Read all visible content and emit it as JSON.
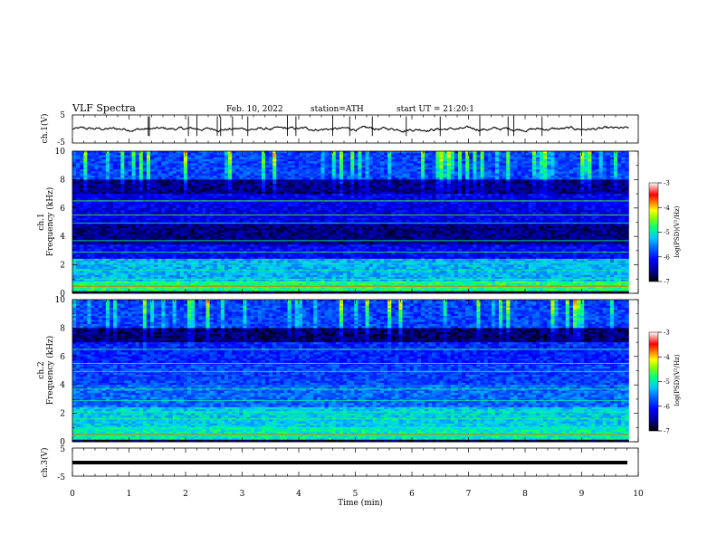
{
  "header": {
    "title": "VLF Spectra",
    "date": "Feb. 10, 2022",
    "station": "station=ATH",
    "start": "start UT =   21:20:1"
  },
  "colors": {
    "trace": "#000000",
    "colormap": [
      "#000000",
      "#00008b",
      "#0000ff",
      "#0064ff",
      "#00c8ff",
      "#00ff80",
      "#80ff00",
      "#ffff00",
      "#ff8000",
      "#ff0000",
      "#ffffff"
    ]
  },
  "chart_data": [
    {
      "type": "line",
      "name": "ch1-trace",
      "ylabel": "ch.1(V)",
      "ylim": [
        -5,
        5
      ],
      "yticks": [
        5,
        -5
      ],
      "x_range_min": [
        0,
        9.83
      ],
      "approx_level": 0,
      "grid": false
    },
    {
      "type": "heatmap",
      "name": "ch1-spectrogram",
      "ylabel": "ch.1\nFrequency (kHz)",
      "ylim": [
        0,
        10
      ],
      "yticks": [
        0,
        2,
        4,
        6,
        8,
        10
      ],
      "x_range_min": [
        0,
        9.83
      ],
      "colorbar": {
        "label": "log(PSD)(V²/Hz)",
        "range": [
          -7,
          -3
        ],
        "ticks": [
          -3,
          -4,
          -5,
          -6,
          -7
        ]
      }
    },
    {
      "type": "heatmap",
      "name": "ch2-spectrogram",
      "ylabel": "ch.2\nFrequency (kHz)",
      "ylim": [
        0,
        10
      ],
      "yticks": [
        0,
        2,
        4,
        6,
        8,
        10
      ],
      "x_range_min": [
        0,
        9.83
      ],
      "colorbar": {
        "label": "log(PSD)(V²/Hz)",
        "range": [
          -7,
          -3
        ],
        "ticks": [
          -3,
          -4,
          -5,
          -6,
          -7
        ]
      }
    },
    {
      "type": "line",
      "name": "ch3-trace",
      "ylabel": "ch.3(V)",
      "ylim": [
        -5,
        5
      ],
      "yticks": [
        5,
        -5
      ],
      "x_range_min": [
        0,
        9.83
      ],
      "approx_level": -1,
      "grid": false
    }
  ],
  "xaxis": {
    "label": "Time (min)",
    "xlim": [
      0,
      10
    ],
    "ticks": [
      "0",
      "1",
      "2",
      "3",
      "4",
      "5",
      "6",
      "7",
      "8",
      "9",
      "10"
    ]
  },
  "labels": {
    "ch1": "ch.1(V)",
    "ch1_freq_1": "ch.1",
    "ch1_freq_2": "Frequency (kHz)",
    "ch2_freq_1": "ch.2",
    "ch2_freq_2": "Frequency (kHz)",
    "ch3": "ch.3(V)",
    "cb_label": "log(PSD)(V²/Hz)",
    "volt_ticks": [
      "5",
      "-5"
    ],
    "freq_ticks": [
      "0",
      "2",
      "4",
      "6",
      "8",
      "10"
    ],
    "cb_ticks": [
      "-3",
      "-4",
      "-5",
      "-6",
      "-7"
    ]
  }
}
